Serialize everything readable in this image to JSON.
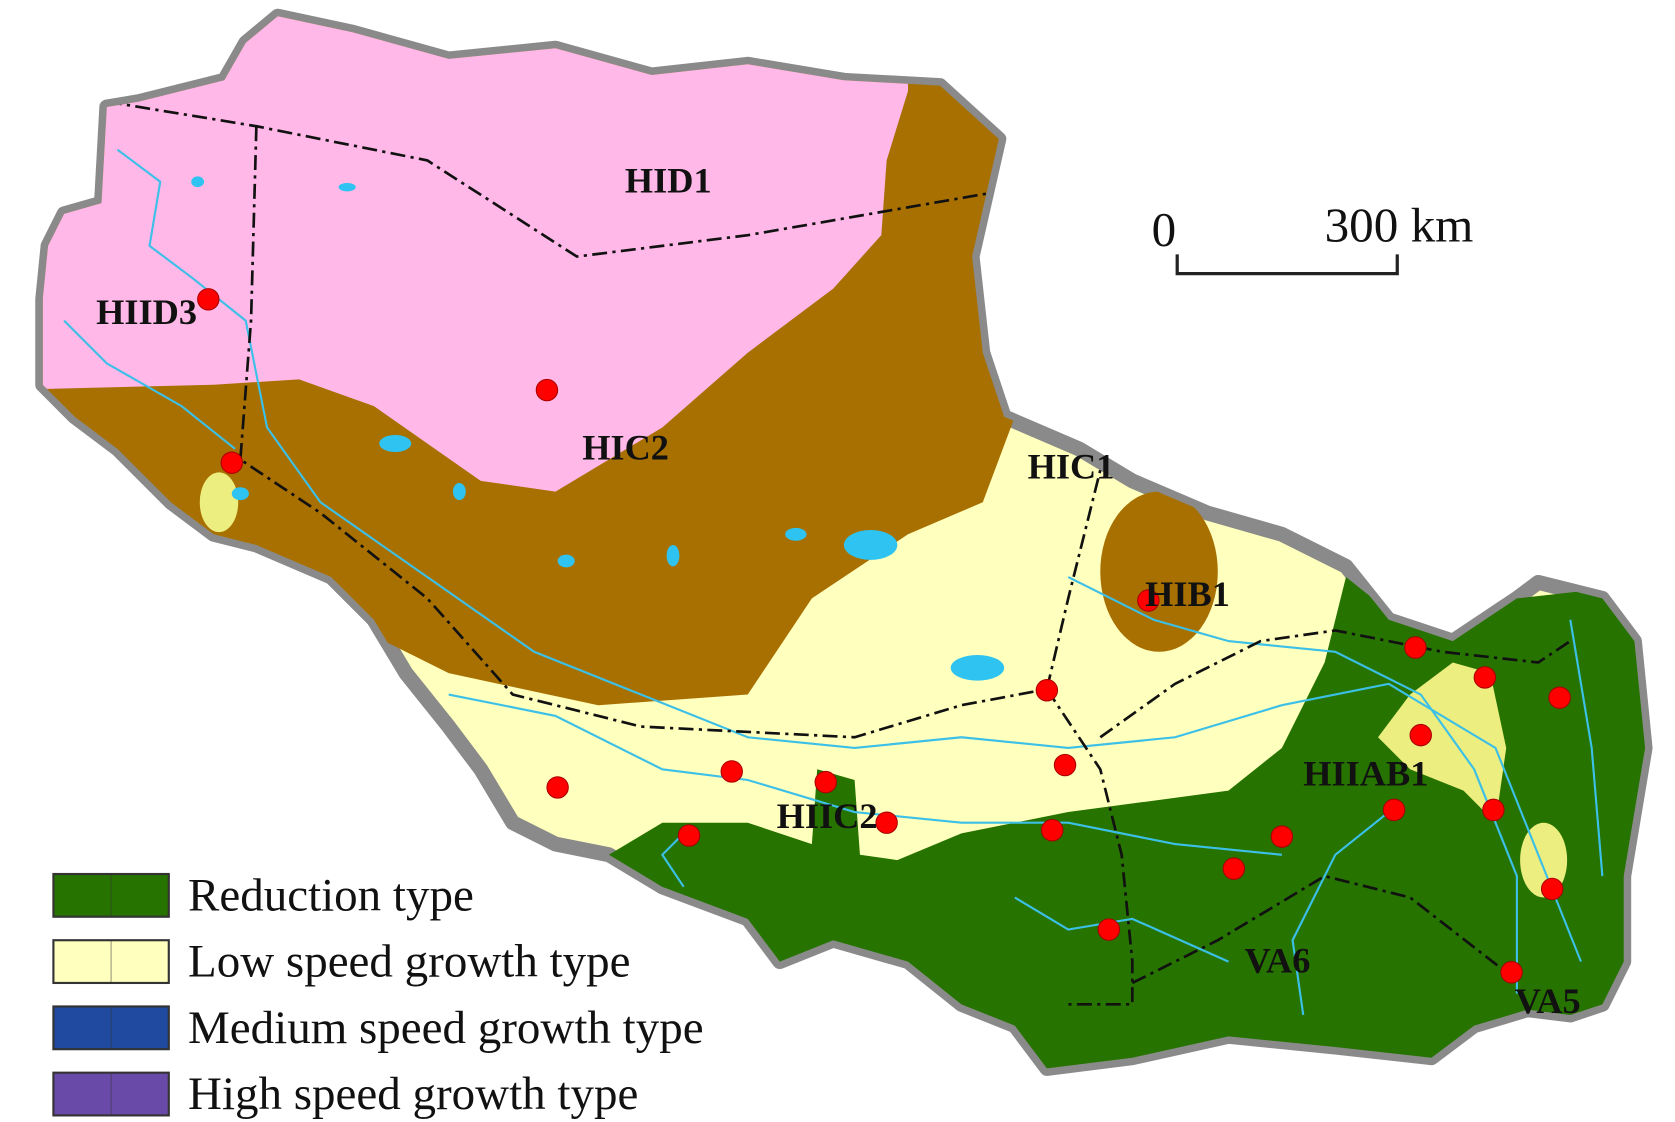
{
  "map": {
    "regions": [
      "HID1",
      "HIID3",
      "HIC2",
      "HIC1",
      "HIB1",
      "HIIC2",
      "HIIAB1",
      "VA6",
      "VA5"
    ],
    "scale_bar": {
      "start": "0",
      "end": "300 km"
    },
    "legend": [
      {
        "label": "Reduction type",
        "color": "#267300"
      },
      {
        "label": "Low speed growth type",
        "color": "#ffffbe"
      },
      {
        "label": "Medium speed growth type",
        "color": "#1f4aa0"
      },
      {
        "label": "High speed growth type",
        "color": "#6a4aa8"
      }
    ]
  }
}
